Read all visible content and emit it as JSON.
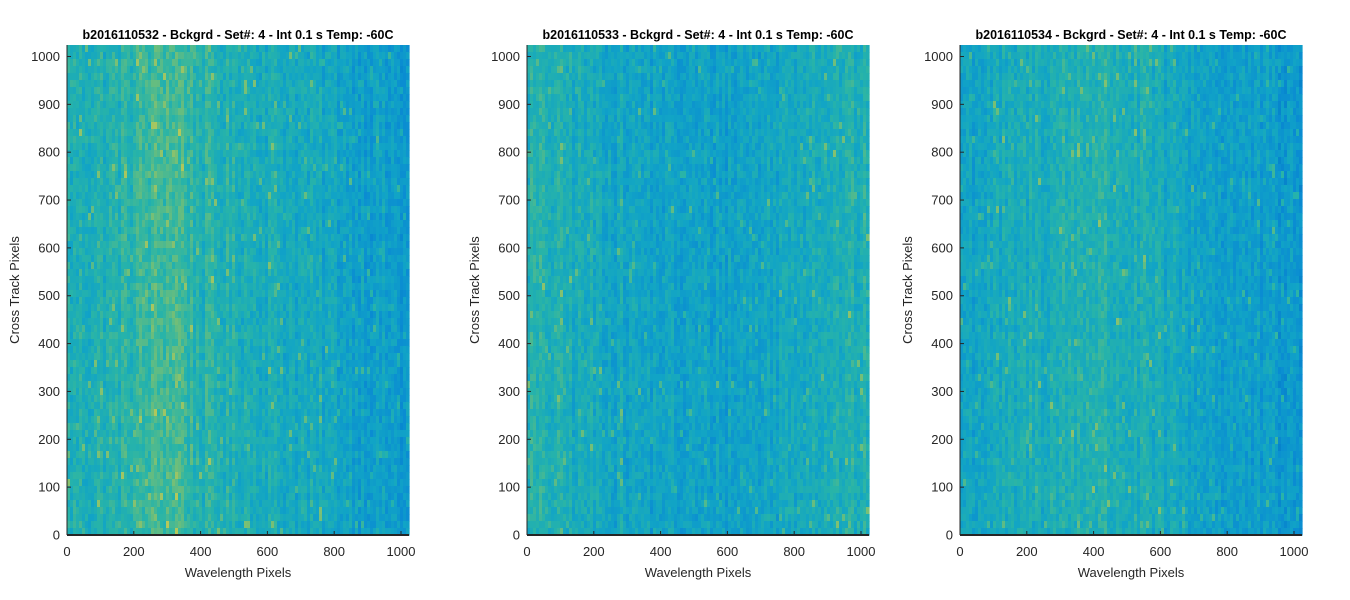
{
  "chart_data": [
    {
      "type": "heatmap",
      "title": "b2016110532 - Bckgrd - Set#: 4 - Int 0.1 s Temp: -60C",
      "xlabel": "Wavelength Pixels",
      "ylabel": "Cross Track Pixels",
      "xlim": [
        0,
        1024
      ],
      "ylim": [
        0,
        1024
      ],
      "xticks": [
        0,
        200,
        400,
        600,
        800,
        1000
      ],
      "yticks": [
        0,
        100,
        200,
        300,
        400,
        500,
        600,
        700,
        800,
        900,
        1000
      ],
      "colormap": "parula",
      "grid": false,
      "pattern": {
        "base_column_profile": [
          {
            "x": 0,
            "level": 0.52
          },
          {
            "x": 150,
            "level": 0.55
          },
          {
            "x": 280,
            "level": 0.68
          },
          {
            "x": 330,
            "level": 0.7
          },
          {
            "x": 400,
            "level": 0.56
          },
          {
            "x": 600,
            "level": 0.5
          },
          {
            "x": 800,
            "level": 0.42
          },
          {
            "x": 1024,
            "level": 0.3
          }
        ]
      }
    },
    {
      "type": "heatmap",
      "title": "b2016110533 - Bckgrd - Set#: 4 - Int 0.1 s Temp: -60C",
      "xlabel": "Wavelength Pixels",
      "ylabel": "Cross Track Pixels",
      "xlim": [
        0,
        1024
      ],
      "ylim": [
        0,
        1024
      ],
      "xticks": [
        0,
        200,
        400,
        600,
        800,
        1000
      ],
      "yticks": [
        0,
        100,
        200,
        300,
        400,
        500,
        600,
        700,
        800,
        900,
        1000
      ],
      "colormap": "parula",
      "grid": false,
      "pattern": {
        "base_column_profile": [
          {
            "x": 0,
            "level": 0.56
          },
          {
            "x": 120,
            "level": 0.5
          },
          {
            "x": 300,
            "level": 0.42
          },
          {
            "x": 500,
            "level": 0.36
          },
          {
            "x": 700,
            "level": 0.4
          },
          {
            "x": 850,
            "level": 0.5
          },
          {
            "x": 1024,
            "level": 0.52
          }
        ]
      }
    },
    {
      "type": "heatmap",
      "title": "b2016110534 - Bckgrd - Set#: 4 - Int 0.1 s Temp: -60C",
      "xlabel": "Wavelength Pixels",
      "ylabel": "Cross Track Pixels",
      "xlim": [
        0,
        1024
      ],
      "ylim": [
        0,
        1024
      ],
      "xticks": [
        0,
        200,
        400,
        600,
        800,
        1000
      ],
      "yticks": [
        0,
        100,
        200,
        300,
        400,
        500,
        600,
        700,
        800,
        900,
        1000
      ],
      "colormap": "parula",
      "grid": false,
      "pattern": {
        "base_column_profile": [
          {
            "x": 0,
            "level": 0.4
          },
          {
            "x": 200,
            "level": 0.48
          },
          {
            "x": 400,
            "level": 0.56
          },
          {
            "x": 550,
            "level": 0.48
          },
          {
            "x": 750,
            "level": 0.38
          },
          {
            "x": 1024,
            "level": 0.28
          }
        ]
      }
    }
  ],
  "style": {
    "axis_color": "#262626",
    "tick_label_color": "#262626",
    "title_color": "#000000",
    "colormap_stops": [
      "#0072BD",
      "#0A8CD2",
      "#11A4C6",
      "#28B4A8",
      "#6EBE7A",
      "#B4C85A"
    ]
  }
}
